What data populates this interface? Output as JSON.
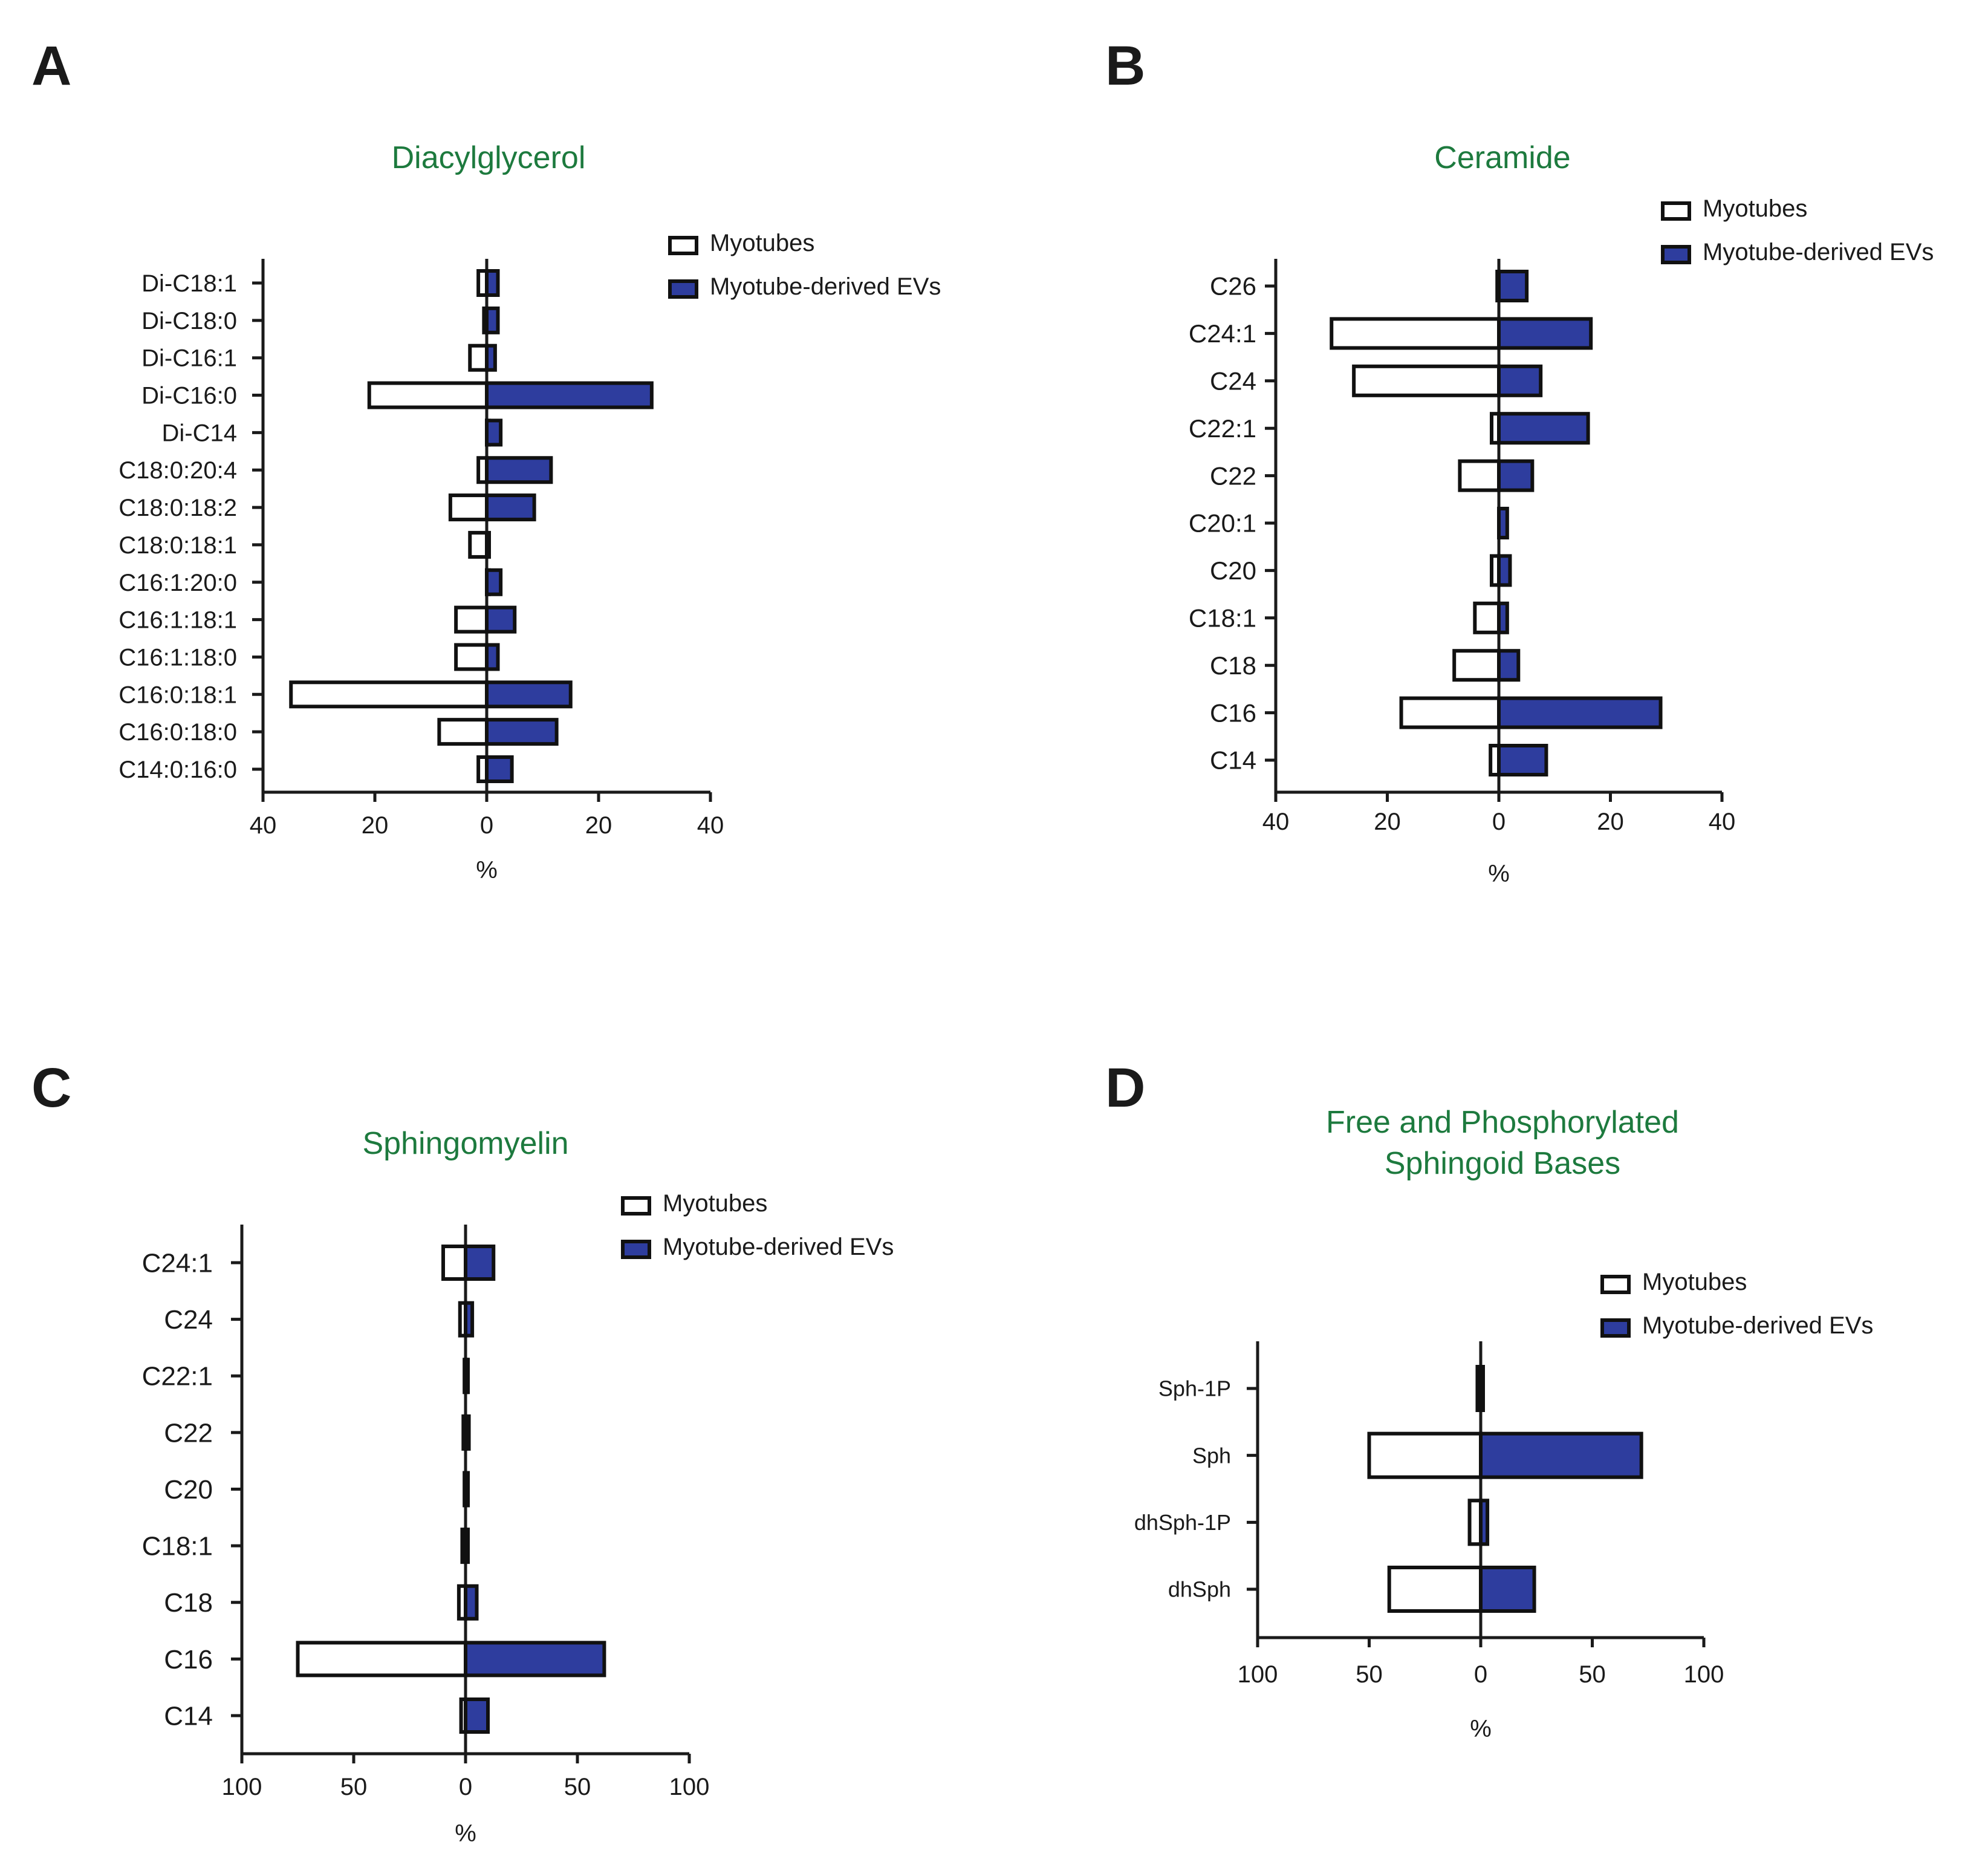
{
  "colors": {
    "ev_fill": "#2e3d9e",
    "myotube_fill": "#ffffff",
    "outline": "#111111",
    "title": "#1d7a3e"
  },
  "panels": [
    {
      "letter": "A"
    },
    {
      "letter": "B"
    },
    {
      "letter": "C"
    },
    {
      "letter": "D"
    }
  ],
  "chart_data": [
    {
      "type": "bar",
      "orientation": "horizontal-mirrored",
      "title": [
        "Diacylglycerol"
      ],
      "xlabel": "%",
      "xlim": [
        -40,
        40
      ],
      "xticks": [
        -40,
        -20,
        0,
        20,
        40
      ],
      "tick_labels": [
        "40",
        "20",
        "0",
        "20",
        "40"
      ],
      "legend": [
        "Myotubes",
        "Myotube-derived EVs"
      ],
      "legend_position": "top-right",
      "categories": [
        "Di-C18:1",
        "Di-C18:0",
        "Di-C16:1",
        "Di-C16:0",
        "Di-C14",
        "C18:0:20:4",
        "C18:0:18:2",
        "C18:0:18:1",
        "C16:1:20:0",
        "C16:1:18:1",
        "C16:1:18:0",
        "C16:0:18:1",
        "C16:0:18:0",
        "C14:0:16:0"
      ],
      "series": [
        {
          "name": "Myotubes",
          "values": [
            1.5,
            0.5,
            3,
            21,
            0,
            1.5,
            6.5,
            3,
            0,
            5.5,
            5.5,
            35,
            8.5,
            1.5
          ]
        },
        {
          "name": "Myotube-derived EVs",
          "values": [
            2,
            2,
            1.5,
            29.5,
            2.5,
            11.5,
            8.5,
            0,
            2.5,
            5,
            2,
            15,
            12.5,
            4.5
          ]
        }
      ]
    },
    {
      "type": "bar",
      "orientation": "horizontal-mirrored",
      "title": [
        "Ceramide"
      ],
      "xlabel": "%",
      "xlim": [
        -40,
        40
      ],
      "xticks": [
        -40,
        -20,
        0,
        20,
        40
      ],
      "tick_labels": [
        "40",
        "20",
        "0",
        "20",
        "40"
      ],
      "legend": [
        "Myotubes",
        "Myotube-derived EVs"
      ],
      "legend_position": "top-right",
      "categories": [
        "C26",
        "C24:1",
        "C24",
        "C22:1",
        "C22",
        "C20:1",
        "C20",
        "C18:1",
        "C18",
        "C16",
        "C14"
      ],
      "series": [
        {
          "name": "Myotubes",
          "values": [
            0.3,
            30,
            26,
            1.3,
            7,
            0,
            1.3,
            4.3,
            8,
            17.5,
            1.5
          ]
        },
        {
          "name": "Myotube-derived EVs",
          "values": [
            5,
            16.5,
            7.5,
            16,
            6,
            1.5,
            2,
            1.5,
            3.5,
            29,
            8.5
          ]
        }
      ]
    },
    {
      "type": "bar",
      "orientation": "horizontal-mirrored",
      "title": [
        "Sphingomyelin"
      ],
      "xlabel": "%",
      "xlim": [
        -100,
        100
      ],
      "xticks": [
        -100,
        -50,
        0,
        50,
        100
      ],
      "tick_labels": [
        "100",
        "50",
        "0",
        "50",
        "100"
      ],
      "legend": [
        "Myotubes",
        "Myotube-derived EVs"
      ],
      "legend_position": "top-right",
      "categories": [
        "C24:1",
        "C24",
        "C22:1",
        "C22",
        "C20",
        "C18:1",
        "C18",
        "C16",
        "C14"
      ],
      "series": [
        {
          "name": "Myotubes",
          "values": [
            10,
            2.5,
            0.5,
            1,
            0.5,
            1.5,
            3,
            75,
            2
          ]
        },
        {
          "name": "Myotube-derived EVs",
          "values": [
            12.5,
            3,
            0.5,
            1.5,
            0.5,
            0.5,
            5,
            62,
            10
          ]
        }
      ]
    },
    {
      "type": "bar",
      "orientation": "horizontal-mirrored",
      "title": [
        "Free and Phosphorylated",
        "Sphingoid Bases"
      ],
      "xlabel": "%",
      "xlim": [
        -100,
        100
      ],
      "xticks": [
        -100,
        -50,
        0,
        50,
        100
      ],
      "tick_labels": [
        "100",
        "50",
        "0",
        "50",
        "100"
      ],
      "legend": [
        "Myotubes",
        "Myotube-derived EVs"
      ],
      "legend_position": "top-right",
      "categories": [
        "Sph-1P",
        "Sph",
        "dhSph-1P",
        "dhSph"
      ],
      "series": [
        {
          "name": "Myotubes",
          "values": [
            1.5,
            50,
            5,
            41
          ]
        },
        {
          "name": "Myotube-derived EVs",
          "values": [
            0,
            72,
            3,
            24
          ]
        }
      ]
    }
  ]
}
